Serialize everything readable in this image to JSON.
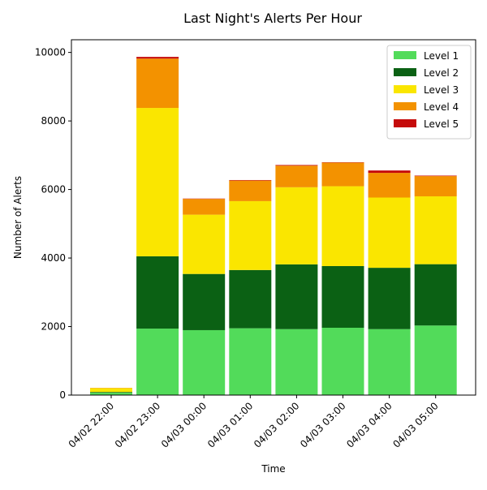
{
  "chart_data": {
    "type": "bar",
    "stacked": true,
    "title": "Last Night's Alerts Per Hour",
    "xlabel": "Time",
    "ylabel": "Number of Alerts",
    "ylim": [
      0,
      10370
    ],
    "yticks": [
      0,
      2000,
      4000,
      6000,
      8000,
      10000
    ],
    "grid": false,
    "legend_position": "top-right",
    "categories": [
      "04/02 22:00",
      "04/02 23:00",
      "04/03 00:00",
      "04/03 01:00",
      "04/03 02:00",
      "04/03 03:00",
      "04/03 04:00",
      "04/03 05:00"
    ],
    "series": [
      {
        "name": "Level 1",
        "color": "#52db5a",
        "values": [
          70,
          1940,
          1895,
          1950,
          1925,
          1965,
          1925,
          2030
        ]
      },
      {
        "name": "Level 2",
        "color": "#0b6114",
        "values": [
          20,
          2110,
          1640,
          1700,
          1890,
          1800,
          1790,
          1790
        ]
      },
      {
        "name": "Level 3",
        "color": "#fae600",
        "values": [
          110,
          4330,
          1730,
          2010,
          2250,
          2330,
          2050,
          1980
        ]
      },
      {
        "name": "Level 4",
        "color": "#f39200",
        "values": [
          10,
          1440,
          460,
          600,
          630,
          690,
          720,
          590
        ]
      },
      {
        "name": "Level 5",
        "color": "#c50b0b",
        "values": [
          0,
          50,
          10,
          15,
          20,
          10,
          70,
          15
        ]
      }
    ]
  }
}
